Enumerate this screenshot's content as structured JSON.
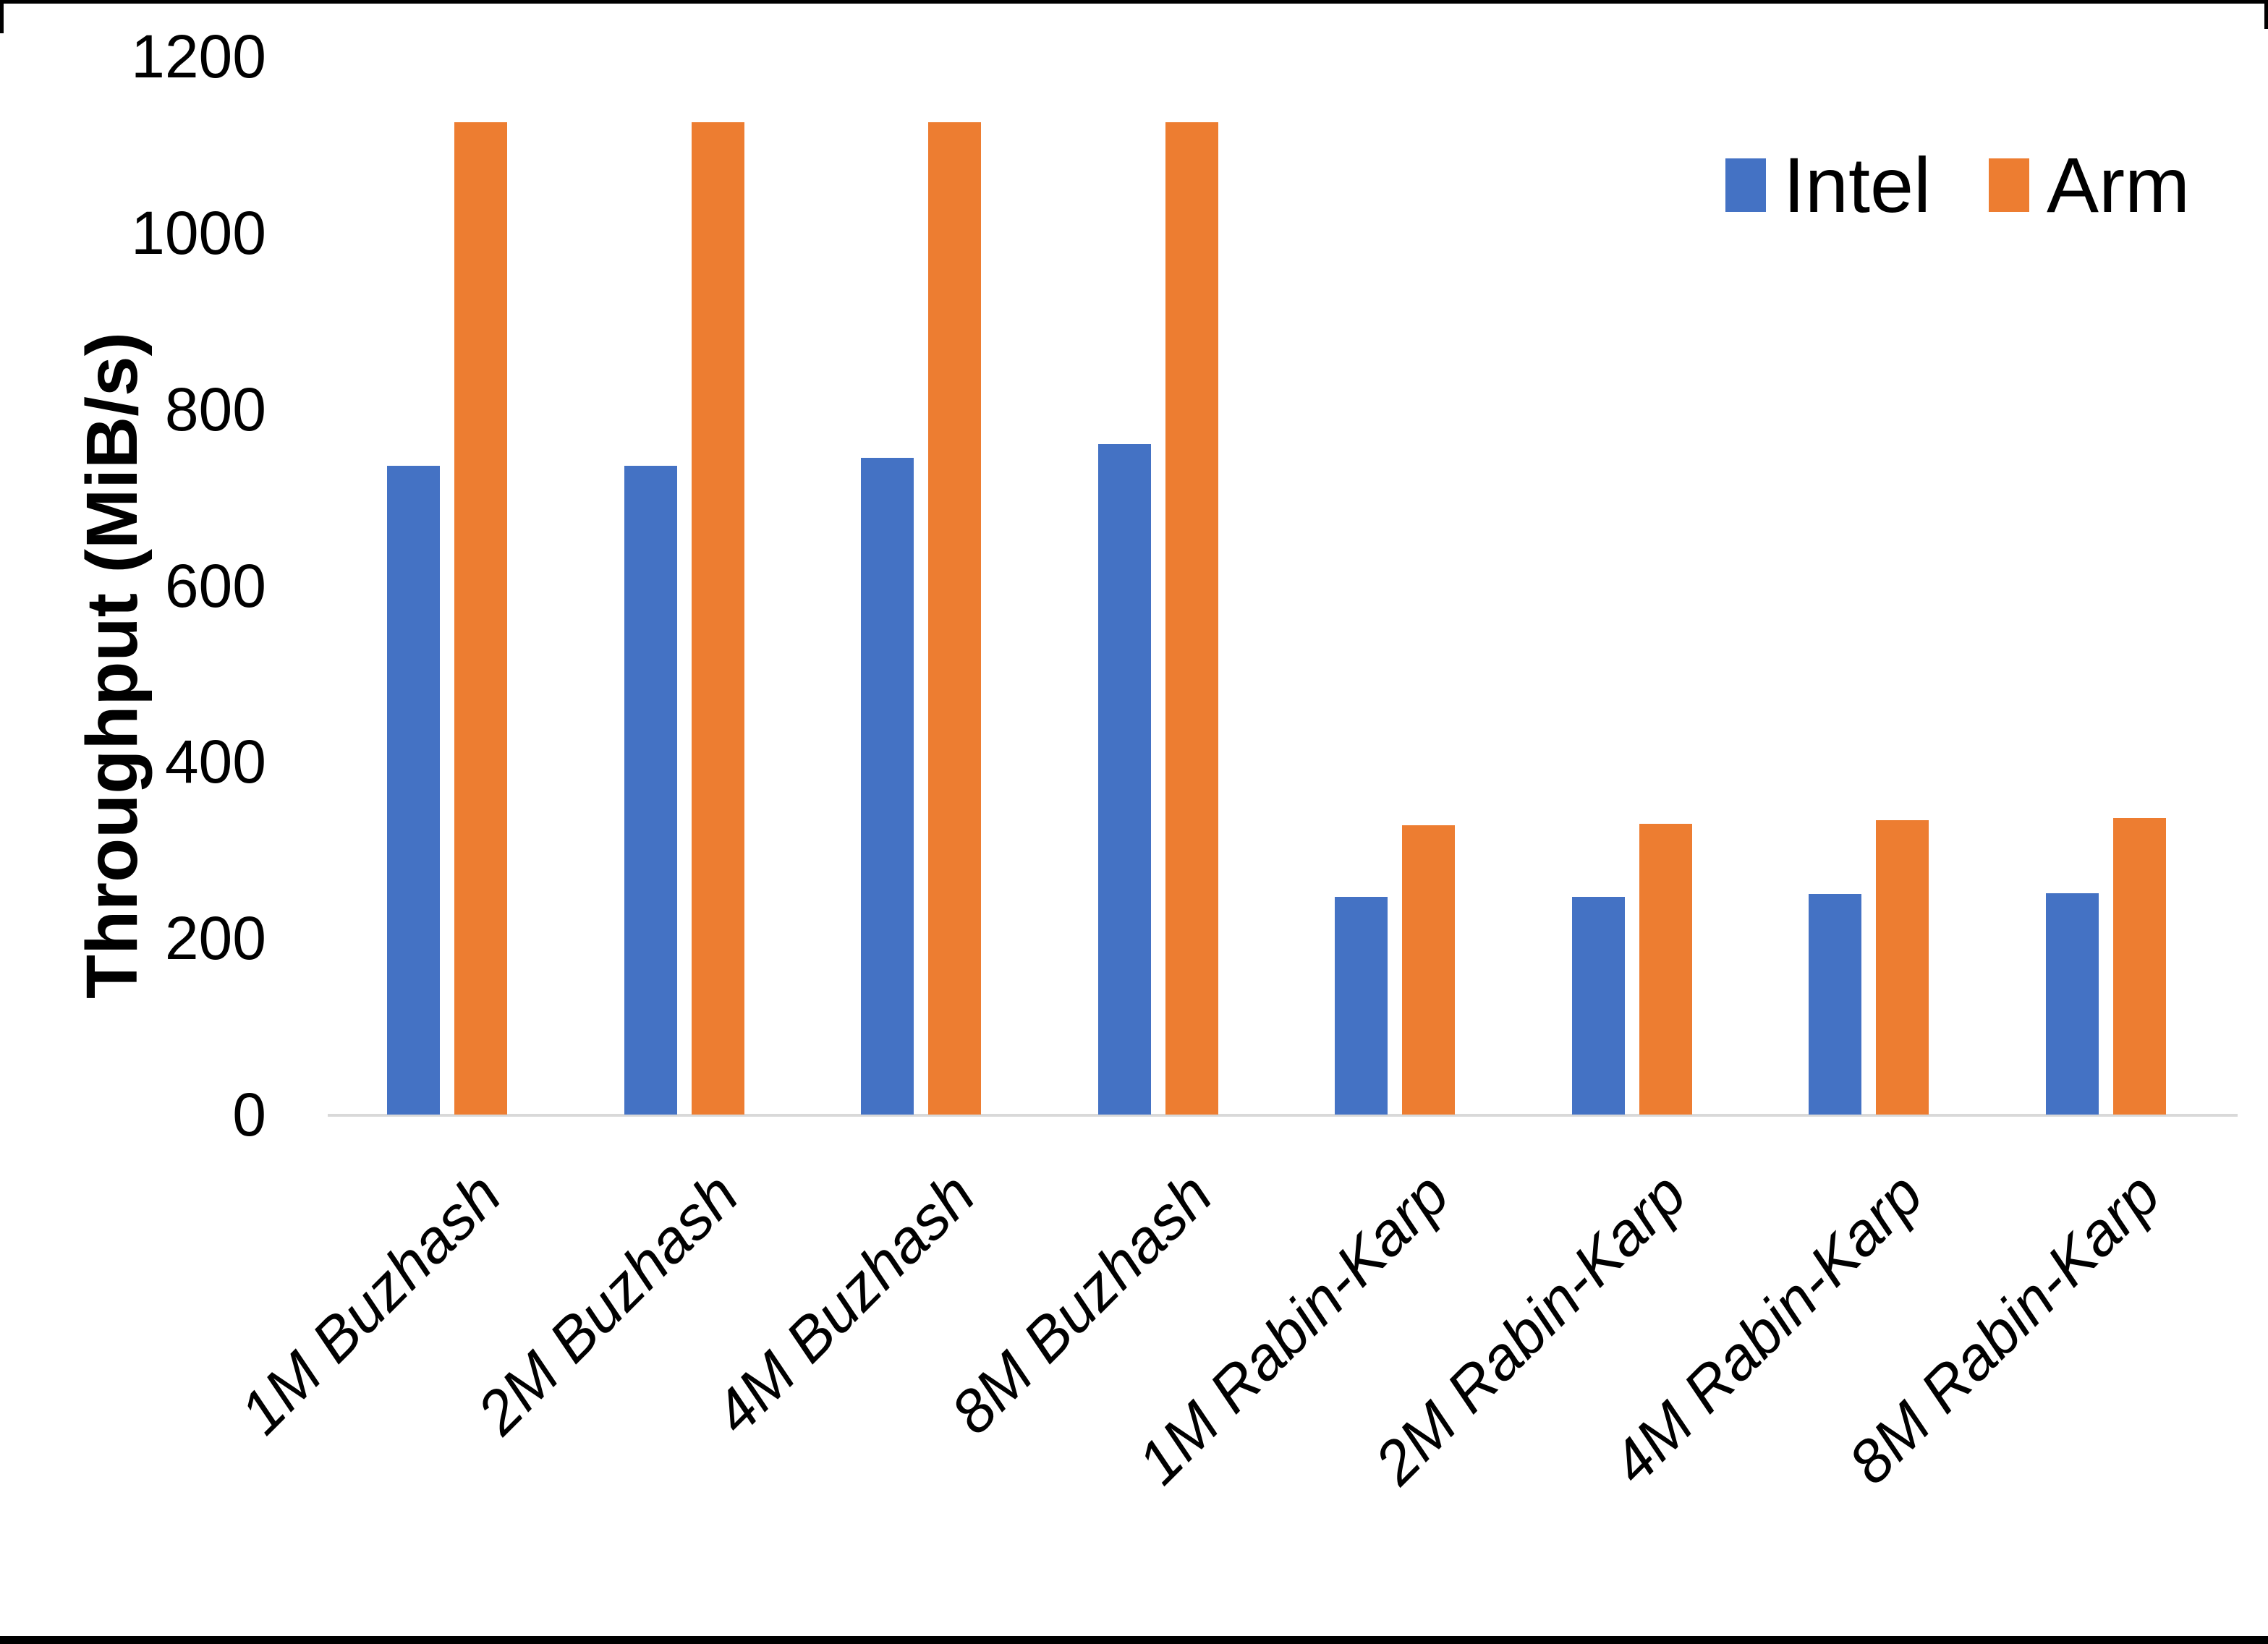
{
  "chart_data": {
    "type": "bar",
    "ylabel": "Throughput (MiB/s)",
    "xlabel": "",
    "categories": [
      "1M Buzhash",
      "2M Buzhash",
      "4M Buzhash",
      "8M Buzhash",
      "1M Rabin-Karp",
      "2M Rabin-Karp",
      "4M Rabin-Karp",
      "8M Rabin-Karp"
    ],
    "series": [
      {
        "name": "Intel",
        "color": "#4472C4",
        "values": [
          736,
          736,
          745,
          760,
          247,
          247,
          250,
          251
        ]
      },
      {
        "name": "Arm",
        "color": "#ED7D31",
        "values": [
          1125,
          1125,
          1125,
          1125,
          328,
          330,
          334,
          336
        ]
      }
    ],
    "ylim": [
      0,
      1200
    ],
    "yticks": [
      0,
      200,
      400,
      600,
      800,
      1000,
      1200
    ],
    "grid": false,
    "legend_position": "top-right",
    "legend_labels": [
      "Intel",
      "Arm"
    ]
  },
  "colors": {
    "axis_line": "#d9d9d9",
    "text": "#000000",
    "page_edge": "#000000"
  }
}
